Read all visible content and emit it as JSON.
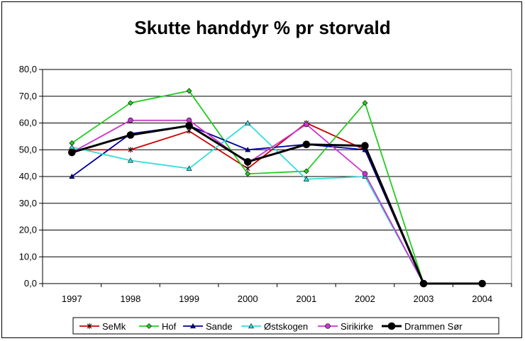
{
  "chart_data": {
    "type": "line",
    "title": "Skutte handdyr % pr storvald",
    "xlabel": "",
    "ylabel": "",
    "categories": [
      "1997",
      "1998",
      "1999",
      "2000",
      "2001",
      "2002",
      "2003",
      "2004"
    ],
    "ylim": [
      0,
      80
    ],
    "ytick_labels": [
      "0,0",
      "10,0",
      "20,0",
      "30,0",
      "40,0",
      "50,0",
      "60,0",
      "70,0",
      "80,0"
    ],
    "grid": true,
    "legend_position": "bottom",
    "series": [
      {
        "name": "SeMk",
        "color": "#cc0000",
        "marker": "star",
        "values": [
          50,
          50,
          57,
          43,
          60,
          50,
          0,
          null
        ]
      },
      {
        "name": "Hof",
        "color": "#22cc22",
        "marker": "diamond",
        "values": [
          52.5,
          67.5,
          72,
          41,
          42,
          67.5,
          0,
          null
        ]
      },
      {
        "name": "Sande",
        "color": "#000099",
        "marker": "triangle",
        "values": [
          40,
          56,
          59,
          50,
          52,
          50,
          0,
          null
        ]
      },
      {
        "name": "Østskogen",
        "color": "#33dddd",
        "marker": "triangle",
        "values": [
          51,
          46,
          43,
          60,
          39,
          40,
          0,
          null
        ]
      },
      {
        "name": "Sirikirke",
        "color": "#cc33cc",
        "marker": "circle",
        "values": [
          49,
          61,
          61,
          45,
          59.5,
          41,
          0,
          null
        ]
      },
      {
        "name": "Drammen Sør",
        "color": "#000000",
        "marker": "circle",
        "values": [
          49,
          55.5,
          59,
          45.5,
          52,
          51.5,
          0,
          0
        ]
      }
    ]
  }
}
